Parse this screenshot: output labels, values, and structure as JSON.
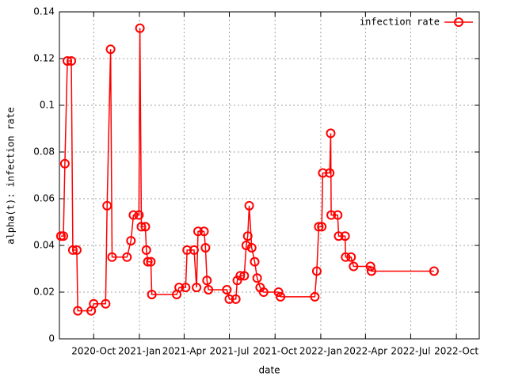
{
  "chart_data": {
    "type": "line",
    "xlabel": "date",
    "ylabel": "alpha(t): infection rate",
    "x": [
      "2020-07-27",
      "2020-08-01",
      "2020-08-04",
      "2020-08-09",
      "2020-08-17",
      "2020-08-20",
      "2020-08-28",
      "2020-08-30",
      "2020-09-26",
      "2020-10-01",
      "2020-10-25",
      "2020-10-28",
      "2020-11-04",
      "2020-11-07",
      "2020-12-07",
      "2020-12-15",
      "2020-12-20",
      "2020-12-31",
      "2021-01-02",
      "2021-01-05",
      "2021-01-13",
      "2021-01-15",
      "2021-01-18",
      "2021-01-24",
      "2021-01-26",
      "2021-03-17",
      "2021-03-22",
      "2021-04-04",
      "2021-04-07",
      "2021-04-21",
      "2021-04-26",
      "2021-04-29",
      "2021-05-11",
      "2021-05-14",
      "2021-05-17",
      "2021-05-20",
      "2021-06-26",
      "2021-07-01",
      "2021-07-14",
      "2021-07-17",
      "2021-07-23",
      "2021-07-31",
      "2021-08-04",
      "2021-08-07",
      "2021-08-10",
      "2021-08-15",
      "2021-08-21",
      "2021-08-26",
      "2021-09-01",
      "2021-09-08",
      "2021-10-08",
      "2021-10-12",
      "2021-12-20",
      "2021-12-24",
      "2021-12-28",
      "2022-01-03",
      "2022-01-05",
      "2022-01-19",
      "2022-01-21",
      "2022-01-22",
      "2022-02-04",
      "2022-02-06",
      "2022-02-19",
      "2022-02-20",
      "2022-03-03",
      "2022-03-08",
      "2022-04-11",
      "2022-04-13",
      "2022-08-17"
    ],
    "series": [
      {
        "name": "infection rate",
        "color": "#ff0000",
        "values": [
          0.044,
          0.044,
          0.075,
          0.119,
          0.119,
          0.038,
          0.038,
          0.012,
          0.012,
          0.015,
          0.015,
          0.057,
          0.124,
          0.035,
          0.035,
          0.042,
          0.053,
          0.053,
          0.133,
          0.048,
          0.048,
          0.038,
          0.033,
          0.033,
          0.019,
          0.019,
          0.022,
          0.022,
          0.038,
          0.038,
          0.022,
          0.046,
          0.046,
          0.039,
          0.025,
          0.021,
          0.021,
          0.017,
          0.017,
          0.025,
          0.027,
          0.027,
          0.04,
          0.044,
          0.057,
          0.039,
          0.033,
          0.026,
          0.022,
          0.02,
          0.02,
          0.018,
          0.018,
          0.029,
          0.048,
          0.048,
          0.071,
          0.071,
          0.088,
          0.053,
          0.053,
          0.044,
          0.044,
          0.035,
          0.035,
          0.031,
          0.031,
          0.029,
          0.029
        ]
      }
    ],
    "xlim": [
      "2020-07-24",
      "2022-11-16"
    ],
    "xticks": [
      {
        "value": "2020-10-01",
        "label": "2020-Oct"
      },
      {
        "value": "2021-01-01",
        "label": "2021-Jan"
      },
      {
        "value": "2021-04-01",
        "label": "2021-Apr"
      },
      {
        "value": "2021-07-01",
        "label": "2021-Jul"
      },
      {
        "value": "2021-10-01",
        "label": "2021-Oct"
      },
      {
        "value": "2022-01-01",
        "label": "2022-Jan"
      },
      {
        "value": "2022-04-01",
        "label": "2022-Apr"
      },
      {
        "value": "2022-07-01",
        "label": "2022-Jul"
      },
      {
        "value": "2022-10-01",
        "label": "2022-Oct"
      }
    ],
    "ylim": [
      0,
      0.14
    ],
    "yticks": [
      0,
      0.02,
      0.04,
      0.06,
      0.08,
      0.1,
      0.12,
      0.14
    ],
    "grid": true,
    "legend": "top-right"
  }
}
